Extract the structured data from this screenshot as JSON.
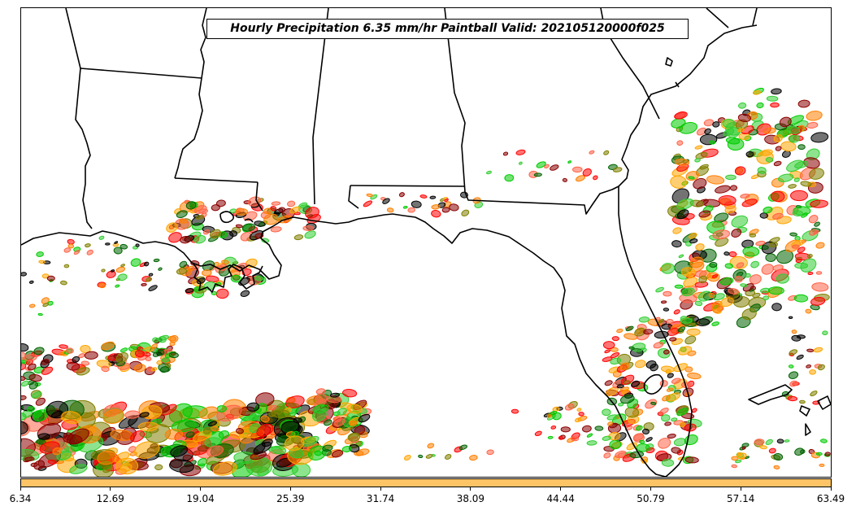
{
  "title": "Hourly Precipitation 6.35 mm/hr Paintball Valid: 202105120000f025",
  "colorbar": {
    "color": "#ffc466",
    "tick_labels": [
      "6.34",
      "12.69",
      "19.04",
      "25.39",
      "31.74",
      "38.09",
      "44.44",
      "50.79",
      "57.14",
      "63.49"
    ]
  },
  "member_colors": [
    "#8b0000",
    "#ff0000",
    "#ff7f00",
    "#ffa500",
    "#808000",
    "#006400",
    "#00cc00",
    "#32cd32",
    "#000000",
    "#ff6347"
  ],
  "map_features": [
    "state-boundaries",
    "coastlines",
    "precipitation-paintball-contours"
  ]
}
